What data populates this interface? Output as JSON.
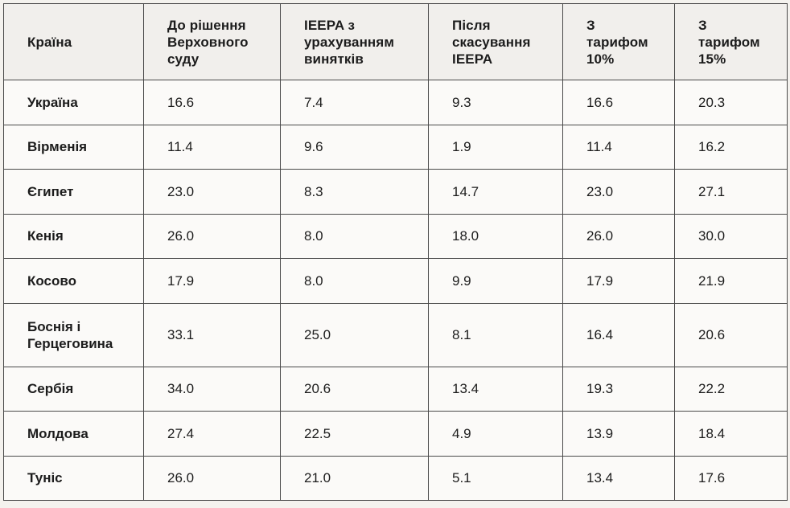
{
  "table": {
    "headers": [
      "Країна",
      "До рішення Верховного суду",
      "IEEPA з урахуванням винятків",
      "Після скасування IEEPA",
      "З тарифом 10%",
      "З тарифом 15%"
    ],
    "rows": [
      [
        "Україна",
        "16.6",
        "7.4",
        "9.3",
        "16.6",
        "20.3"
      ],
      [
        "Вірменія",
        "11.4",
        "9.6",
        "1.9",
        "11.4",
        "16.2"
      ],
      [
        "Єгипет",
        "23.0",
        "8.3",
        "14.7",
        "23.0",
        "27.1"
      ],
      [
        "Кенія",
        "26.0",
        "8.0",
        "18.0",
        "26.0",
        "30.0"
      ],
      [
        "Косово",
        "17.9",
        "8.0",
        "9.9",
        "17.9",
        "21.9"
      ],
      [
        "Боснія і Герцеговина",
        "33.1",
        "25.0",
        "8.1",
        "16.4",
        "20.6"
      ],
      [
        "Сербія",
        "34.0",
        "20.6",
        "13.4",
        "19.3",
        "22.2"
      ],
      [
        "Молдова",
        "27.4",
        "22.5",
        "4.9",
        "13.9",
        "18.4"
      ],
      [
        "Туніс",
        "26.0",
        "21.0",
        "5.1",
        "13.4",
        "17.6"
      ]
    ]
  }
}
